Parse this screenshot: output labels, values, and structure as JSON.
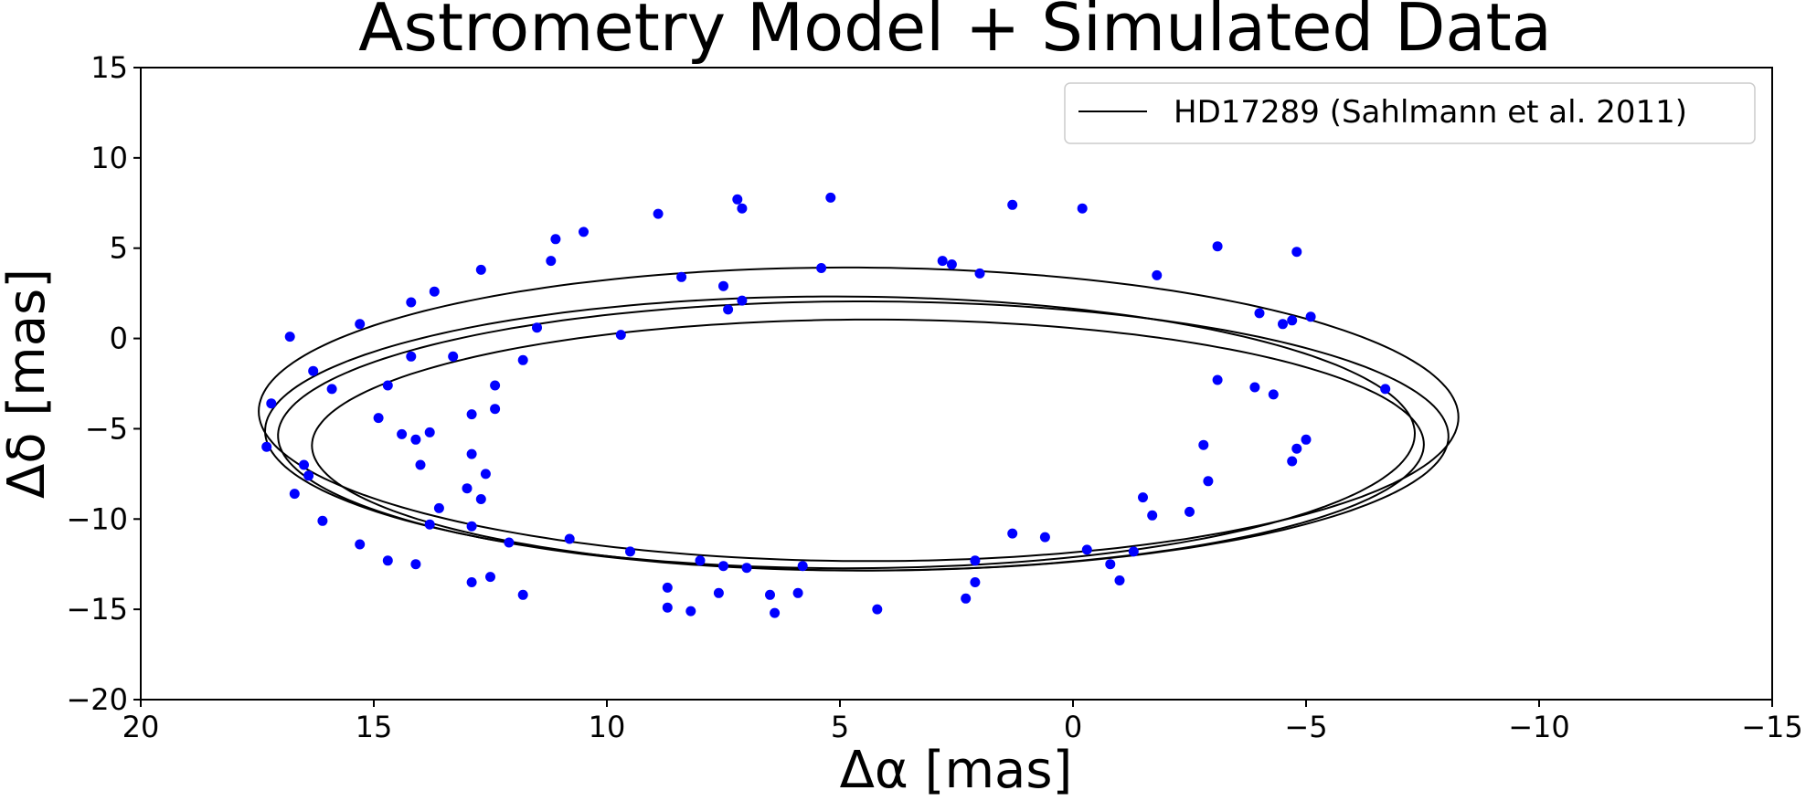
{
  "chart_data": {
    "type": "scatter",
    "title": "Astrometry Model + Simulated Data",
    "xlabel": "Δα [mas]",
    "ylabel": "Δδ [mas]",
    "xlim": [
      20,
      -15
    ],
    "ylim": [
      -20,
      15
    ],
    "xticks": [
      20,
      15,
      10,
      5,
      0,
      -5,
      -10,
      -15
    ],
    "yticks": [
      15,
      10,
      5,
      0,
      -5,
      -10,
      -15,
      -20
    ],
    "grid": false,
    "legend": {
      "placement": "top-right",
      "entries": [
        "HD17289 (Sahlmann et al. 2011)"
      ]
    },
    "colors": {
      "model": "#000000",
      "points": "#0000ff"
    },
    "series": [
      {
        "name": "HD17289 (Sahlmann et al. 2011)",
        "kind": "line",
        "loops": [
          {
            "cx": 4.6,
            "cy": -4.2,
            "a": 13.1,
            "b": 8.3,
            "angle_deg": 14
          },
          {
            "cx": 5.0,
            "cy": -5.2,
            "a": 12.6,
            "b": 7.7,
            "angle_deg": 15
          },
          {
            "cx": 4.5,
            "cy": -5.4,
            "a": 12.8,
            "b": 7.6,
            "angle_deg": 14
          },
          {
            "cx": 4.4,
            "cy": -5.9,
            "a": 12.2,
            "b": 7.1,
            "angle_deg": 15
          }
        ]
      },
      {
        "kind": "scatter",
        "points": [
          [
            -6.7,
            -2.8
          ],
          [
            -5.1,
            1.2
          ],
          [
            -4.8,
            4.8
          ],
          [
            -4.7,
            1.0
          ],
          [
            -4.5,
            0.8
          ],
          [
            -4.3,
            -3.1
          ],
          [
            -3.9,
            -2.7
          ],
          [
            -4.0,
            1.4
          ],
          [
            -3.1,
            -2.3
          ],
          [
            -3.1,
            5.1
          ],
          [
            -1.8,
            3.5
          ],
          [
            -0.2,
            7.2
          ],
          [
            1.3,
            7.4
          ],
          [
            -5.0,
            -5.6
          ],
          [
            -4.8,
            -6.1
          ],
          [
            -4.7,
            -6.8
          ],
          [
            -2.9,
            -7.9
          ],
          [
            -2.8,
            -5.9
          ],
          [
            -2.5,
            -9.6
          ],
          [
            -1.7,
            -9.8
          ],
          [
            -1.5,
            -8.8
          ],
          [
            -1.3,
            -11.8
          ],
          [
            -1.0,
            -13.4
          ],
          [
            -0.8,
            -12.5
          ],
          [
            -0.3,
            -11.7
          ],
          [
            0.6,
            -11.0
          ],
          [
            1.3,
            -10.8
          ],
          [
            2.1,
            -13.5
          ],
          [
            2.1,
            -12.3
          ],
          [
            2.3,
            -14.4
          ],
          [
            4.2,
            -15.0
          ],
          [
            5.9,
            -14.1
          ],
          [
            5.8,
            -12.6
          ],
          [
            6.4,
            -15.2
          ],
          [
            6.5,
            -14.2
          ],
          [
            7.0,
            -12.7
          ],
          [
            7.5,
            -12.6
          ],
          [
            7.6,
            -14.1
          ],
          [
            8.0,
            -12.3
          ],
          [
            8.2,
            -15.1
          ],
          [
            8.7,
            -14.9
          ],
          [
            8.7,
            -13.8
          ],
          [
            9.5,
            -11.8
          ],
          [
            10.8,
            -11.1
          ],
          [
            12.1,
            -11.3
          ],
          [
            11.8,
            -14.2
          ],
          [
            12.5,
            -13.2
          ],
          [
            12.9,
            -13.5
          ],
          [
            12.7,
            -8.9
          ],
          [
            12.9,
            -10.4
          ],
          [
            13.0,
            -8.3
          ],
          [
            12.6,
            -7.5
          ],
          [
            13.6,
            -9.4
          ],
          [
            13.8,
            -10.3
          ],
          [
            14.1,
            -12.5
          ],
          [
            14.7,
            -12.3
          ],
          [
            15.3,
            -11.4
          ],
          [
            16.1,
            -10.1
          ],
          [
            16.7,
            -8.6
          ],
          [
            16.4,
            -7.6
          ],
          [
            16.5,
            -7.0
          ],
          [
            17.3,
            -6.0
          ],
          [
            17.2,
            -3.6
          ],
          [
            16.8,
            0.1
          ],
          [
            16.3,
            -1.8
          ],
          [
            15.9,
            -2.8
          ],
          [
            15.3,
            0.8
          ],
          [
            14.9,
            -4.4
          ],
          [
            14.7,
            -2.6
          ],
          [
            14.4,
            -5.3
          ],
          [
            14.1,
            -5.6
          ],
          [
            14.0,
            -7.0
          ],
          [
            13.8,
            -5.2
          ],
          [
            14.2,
            -1.0
          ],
          [
            13.3,
            -1.0
          ],
          [
            12.9,
            -6.4
          ],
          [
            12.9,
            -4.2
          ],
          [
            12.4,
            -3.9
          ],
          [
            12.4,
            -2.6
          ],
          [
            11.8,
            -1.2
          ],
          [
            11.5,
            0.6
          ],
          [
            14.2,
            2.0
          ],
          [
            13.7,
            2.6
          ],
          [
            12.7,
            3.8
          ],
          [
            11.2,
            4.3
          ],
          [
            11.1,
            5.5
          ],
          [
            10.5,
            5.9
          ],
          [
            9.7,
            0.2
          ],
          [
            8.9,
            6.9
          ],
          [
            8.4,
            3.4
          ],
          [
            7.5,
            2.9
          ],
          [
            7.4,
            1.6
          ],
          [
            7.1,
            2.1
          ],
          [
            7.2,
            7.7
          ],
          [
            7.1,
            7.2
          ],
          [
            5.2,
            7.8
          ],
          [
            5.4,
            3.9
          ],
          [
            2.8,
            4.3
          ],
          [
            2.6,
            4.1
          ],
          [
            2.0,
            3.6
          ]
        ]
      }
    ]
  }
}
